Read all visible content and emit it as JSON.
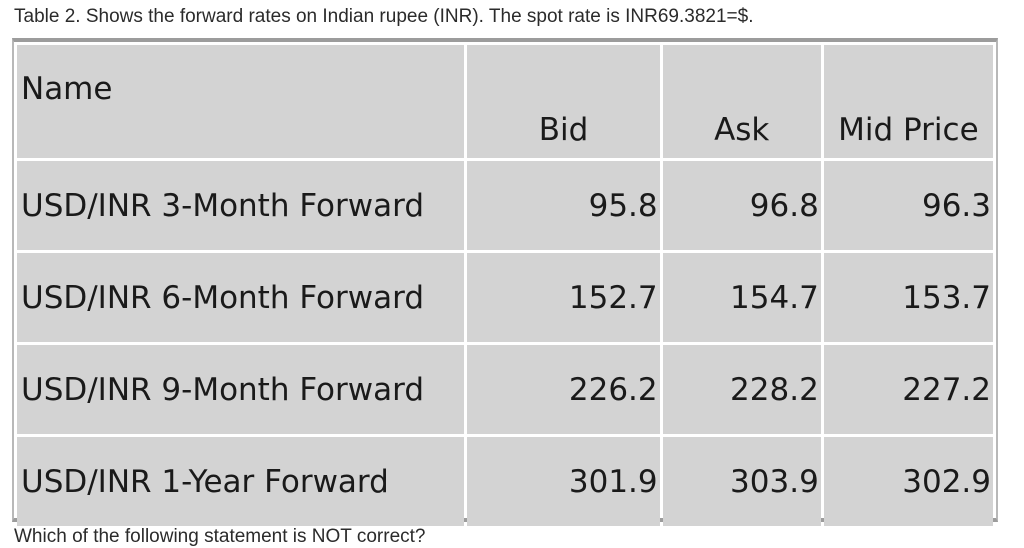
{
  "caption": "Table 2. Shows the forward rates on Indian rupee (INR).  The spot rate is INR69.3821=$.",
  "table": {
    "headers": {
      "name": "Name",
      "bid": "Bid",
      "ask": "Ask",
      "mid": "Mid Price"
    },
    "rows": [
      {
        "name": "USD/INR 3-Month Forward",
        "bid": "95.8",
        "ask": "96.8",
        "mid": "96.3"
      },
      {
        "name": "USD/INR 6-Month Forward",
        "bid": "152.7",
        "ask": "154.7",
        "mid": "153.7"
      },
      {
        "name": "USD/INR 9-Month Forward",
        "bid": "226.2",
        "ask": "228.2",
        "mid": "227.2"
      },
      {
        "name": "USD/INR 1-Year Forward",
        "bid": "301.9",
        "ask": "303.9",
        "mid": "302.9"
      }
    ]
  },
  "question_partial": "Which of the following statement is NOT correct?"
}
